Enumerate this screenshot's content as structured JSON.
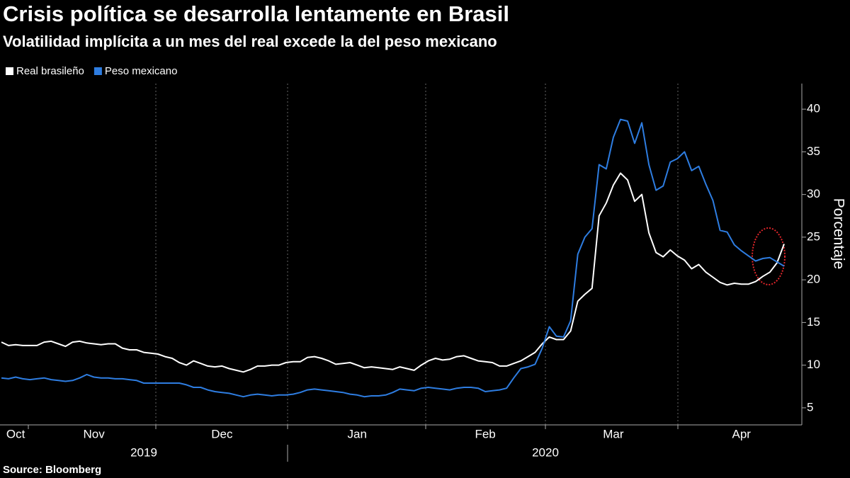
{
  "chart_data": {
    "type": "line",
    "title": "Crisis política se desarrolla lentamente en Brasil",
    "subtitle": "Volatilidad implícita a un mes del real excede la del peso mexicano",
    "y_label": "Porcentaje",
    "source": "Source: Bloomberg",
    "legend": "top-left",
    "year_labels": [
      "2019",
      "2020"
    ],
    "categories": [
      null,
      null,
      "Oct",
      null,
      null,
      null,
      null,
      null,
      null,
      null,
      null,
      null,
      null,
      "Nov",
      null,
      null,
      null,
      null,
      null,
      null,
      null,
      null,
      null,
      null,
      null,
      null,
      null,
      null,
      null,
      null,
      null,
      "Dec",
      null,
      null,
      null,
      null,
      null,
      null,
      null,
      null,
      null,
      null,
      null,
      null,
      null,
      null,
      null,
      null,
      null,
      null,
      "Jan",
      null,
      null,
      null,
      null,
      null,
      null,
      null,
      null,
      null,
      null,
      null,
      null,
      null,
      null,
      null,
      null,
      null,
      "Feb",
      null,
      null,
      null,
      null,
      null,
      null,
      null,
      null,
      null,
      null,
      null,
      null,
      null,
      null,
      null,
      null,
      null,
      "Mar",
      null,
      null,
      null,
      null,
      null,
      null,
      null,
      null,
      null,
      null,
      null,
      null,
      null,
      null,
      null,
      null,
      null,
      "Apr",
      null,
      null,
      null,
      null,
      null,
      null
    ],
    "series": [
      {
        "name": "Real brasileño",
        "color": "#ffffff",
        "values": [
          12.7,
          12.3,
          12.4,
          12.3,
          12.3,
          12.3,
          12.7,
          12.8,
          12.5,
          12.2,
          12.7,
          12.8,
          12.6,
          12.5,
          12.4,
          12.5,
          12.5,
          12.0,
          11.8,
          11.8,
          11.5,
          11.4,
          11.3,
          11.0,
          10.8,
          10.3,
          10.0,
          10.5,
          10.2,
          9.9,
          9.8,
          9.9,
          9.6,
          9.4,
          9.2,
          9.5,
          9.9,
          9.9,
          10.0,
          10.0,
          10.3,
          10.4,
          10.4,
          10.9,
          11.0,
          10.8,
          10.5,
          10.1,
          10.2,
          10.3,
          10.0,
          9.7,
          9.8,
          9.7,
          9.6,
          9.5,
          9.8,
          9.6,
          9.4,
          10.0,
          10.5,
          10.8,
          10.6,
          10.7,
          11.0,
          11.1,
          10.8,
          10.5,
          10.4,
          10.3,
          9.9,
          9.9,
          10.2,
          10.5,
          11.0,
          11.5,
          12.5,
          13.3,
          13.0,
          13.0,
          14.0,
          17.5,
          18.3,
          19.0,
          27.5,
          29.0,
          31.1,
          32.5,
          31.7,
          29.2,
          30.0,
          25.5,
          23.2,
          22.7,
          23.5,
          22.8,
          22.3,
          21.3,
          21.8,
          20.9,
          20.3,
          19.7,
          19.4,
          19.6,
          19.5,
          19.5,
          19.8,
          20.4,
          20.9,
          22.0,
          24.2
        ]
      },
      {
        "name": "Peso mexicano",
        "color": "#2e7de1",
        "values": [
          8.5,
          8.4,
          8.6,
          8.4,
          8.3,
          8.4,
          8.5,
          8.3,
          8.2,
          8.1,
          8.2,
          8.5,
          8.9,
          8.6,
          8.5,
          8.5,
          8.4,
          8.4,
          8.3,
          8.2,
          7.9,
          7.9,
          7.9,
          7.9,
          7.9,
          7.9,
          7.7,
          7.4,
          7.4,
          7.1,
          6.9,
          6.8,
          6.7,
          6.5,
          6.3,
          6.5,
          6.6,
          6.5,
          6.4,
          6.5,
          6.5,
          6.6,
          6.8,
          7.1,
          7.2,
          7.1,
          7.0,
          6.9,
          6.8,
          6.6,
          6.5,
          6.3,
          6.4,
          6.4,
          6.5,
          6.8,
          7.2,
          7.1,
          7.0,
          7.3,
          7.4,
          7.3,
          7.2,
          7.1,
          7.3,
          7.4,
          7.4,
          7.3,
          6.9,
          7.0,
          7.1,
          7.3,
          8.5,
          9.6,
          9.8,
          10.1,
          12.0,
          14.5,
          13.4,
          13.3,
          15.2,
          23.0,
          25.0,
          26.0,
          33.5,
          33.0,
          36.7,
          38.8,
          38.6,
          36.0,
          38.4,
          33.5,
          30.5,
          31.0,
          33.8,
          34.2,
          35.0,
          32.8,
          33.3,
          31.2,
          29.3,
          25.8,
          25.6,
          24.1,
          23.4,
          22.8,
          22.2,
          22.5,
          22.6,
          22.1,
          21.6
        ]
      }
    ],
    "ylim": [
      3,
      43
    ],
    "yticks": [
      5,
      10,
      15,
      20,
      25,
      30,
      35,
      40
    ]
  }
}
